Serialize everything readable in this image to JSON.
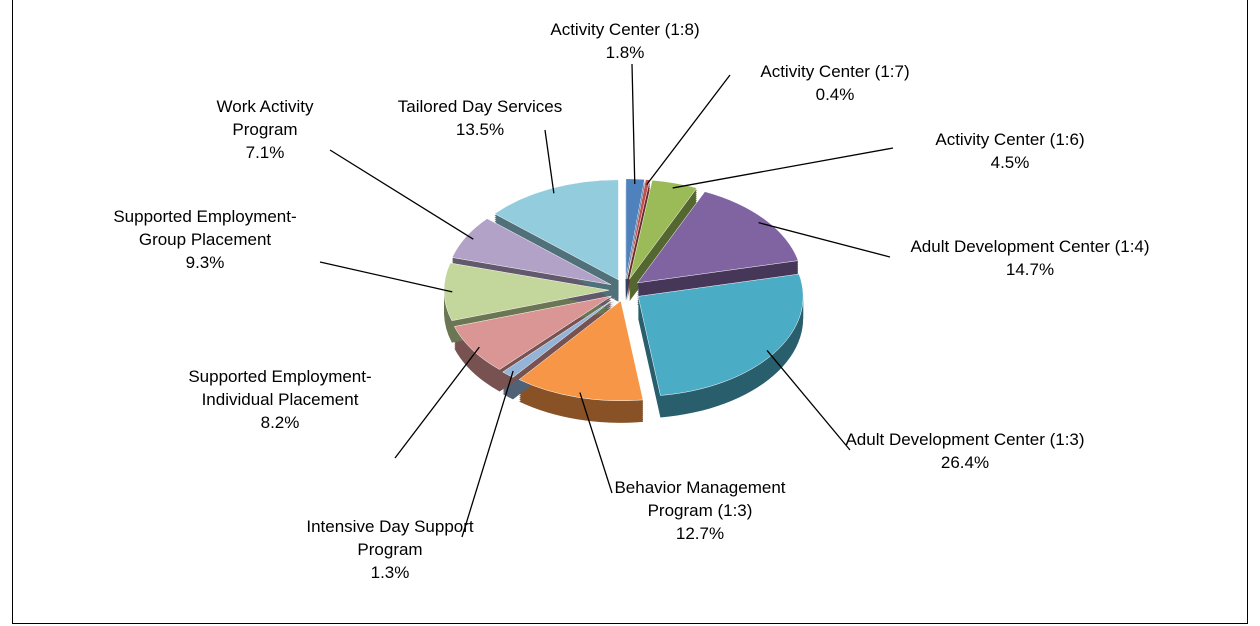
{
  "chart_data": {
    "type": "pie",
    "categories": [
      "Activity Center (1:8)",
      "Activity Center (1:7)",
      "Activity Center (1:6)",
      "Adult Development Center (1:4)",
      "Adult Development Center (1:3)",
      "Behavior Management Program (1:3)",
      "Intensive Day Support Program",
      "Supported Employment-Individual Placement",
      "Supported Employment-Group Placement",
      "Work Activity Program",
      "Tailored Day Services"
    ],
    "values": [
      1.8,
      0.4,
      4.5,
      14.7,
      26.4,
      12.7,
      1.3,
      8.2,
      9.3,
      7.1,
      13.5
    ],
    "value_labels": [
      "1.8%",
      "0.4%",
      "4.5%",
      "14.7%",
      "26.4%",
      "12.7%",
      "1.3%",
      "8.2%",
      "9.3%",
      "7.1%",
      "13.5%"
    ],
    "colors": [
      "#4f81bd",
      "#c0504d",
      "#9bbb59",
      "#8064a2",
      "#4bacc6",
      "#f79646",
      "#95b3d7",
      "#d99694",
      "#c3d69b",
      "#b3a2c7",
      "#93cddd"
    ]
  }
}
